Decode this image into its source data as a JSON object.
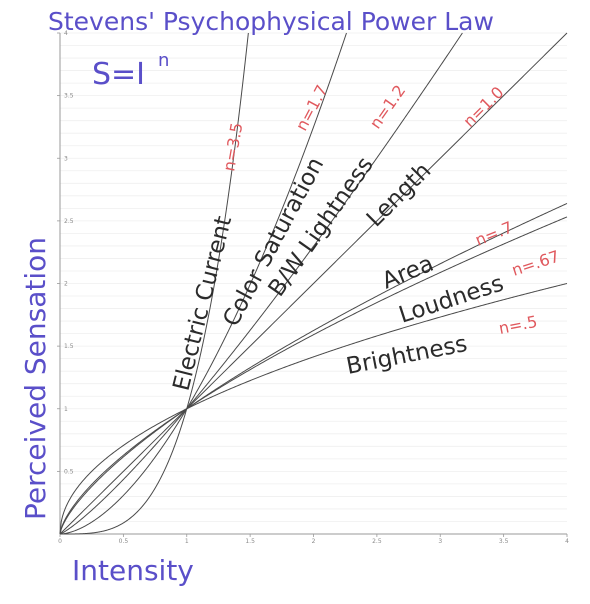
{
  "chart_data": {
    "type": "line",
    "title": "Stevens' Psychophysical Power Law",
    "formula_base": "S=I",
    "formula_exp": "n",
    "xlabel": "Intensity",
    "ylabel": "Perceived Sensation",
    "xlim": [
      0,
      4
    ],
    "ylim": [
      0,
      4
    ],
    "x_ticks": [
      "0",
      "0.5",
      "1",
      "1.5",
      "2",
      "2.5",
      "3",
      "3.5",
      "4"
    ],
    "y_ticks": [
      "0.5",
      "1",
      "1.5",
      "2",
      "2.5",
      "3",
      "3.5",
      "4"
    ],
    "grid": true,
    "series": [
      {
        "name": "Electric Current",
        "exponent": 3.5,
        "exp_label": "n=3.5"
      },
      {
        "name": "Color Saturation",
        "exponent": 1.7,
        "exp_label": "n=1.7"
      },
      {
        "name": "B/W Lightness",
        "exponent": 1.2,
        "exp_label": "n=1.2"
      },
      {
        "name": "Length",
        "exponent": 1.0,
        "exp_label": "n=1.0"
      },
      {
        "name": "Area",
        "exponent": 0.7,
        "exp_label": "n=.7"
      },
      {
        "name": "Loudness",
        "exponent": 0.67,
        "exp_label": "n=.67"
      },
      {
        "name": "Brightness",
        "exponent": 0.5,
        "exp_label": "n=.5"
      }
    ]
  }
}
